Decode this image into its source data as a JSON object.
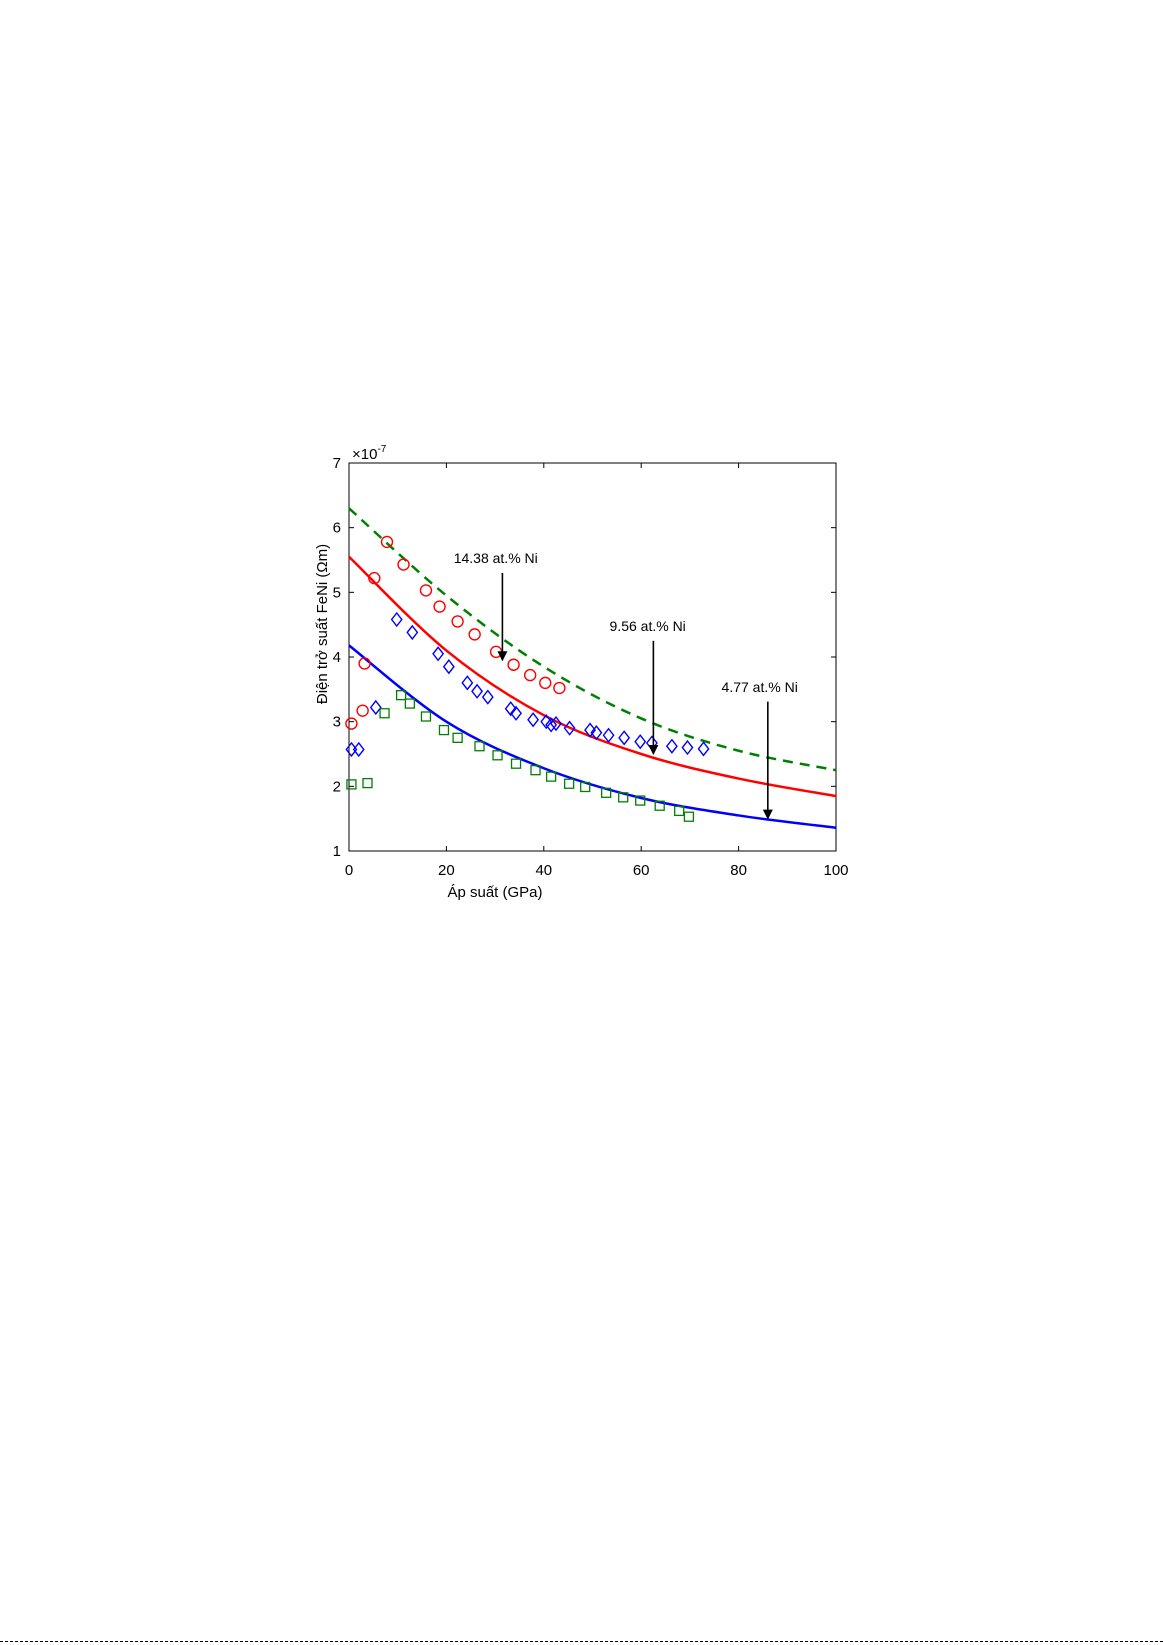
{
  "chart_data": {
    "type": "scatter",
    "title": "",
    "xlabel": "Áp suất (GPa)",
    "ylabel": "Điện trở suất FeNi (Ωm)",
    "y_multiplier": "×10",
    "y_multiplier_exp": "-7",
    "xlim": [
      0,
      100
    ],
    "ylim": [
      1,
      7
    ],
    "xticks": [
      0,
      20,
      40,
      60,
      80,
      100
    ],
    "yticks": [
      1,
      2,
      3,
      4,
      5,
      6,
      7
    ],
    "grid": false,
    "series": [
      {
        "marker": "circle",
        "color": "#ff0000",
        "points": [
          [
            0.5,
            2.97
          ],
          [
            2.8,
            3.17
          ],
          [
            3.2,
            3.9
          ],
          [
            5.2,
            5.22
          ],
          [
            7.8,
            5.78
          ],
          [
            11.2,
            5.43
          ],
          [
            15.8,
            5.03
          ],
          [
            18.6,
            4.78
          ],
          [
            22.3,
            4.55
          ],
          [
            25.8,
            4.35
          ],
          [
            30.2,
            4.08
          ],
          [
            33.8,
            3.88
          ],
          [
            37.2,
            3.72
          ],
          [
            40.3,
            3.6
          ],
          [
            43.2,
            3.52
          ]
        ]
      },
      {
        "marker": "diamond",
        "color": "#0000ff",
        "points": [
          [
            0.5,
            2.57
          ],
          [
            2.0,
            2.57
          ],
          [
            5.5,
            3.22
          ],
          [
            9.8,
            4.58
          ],
          [
            13.0,
            4.38
          ],
          [
            18.3,
            4.05
          ],
          [
            20.5,
            3.85
          ],
          [
            24.3,
            3.6
          ],
          [
            26.3,
            3.47
          ],
          [
            28.5,
            3.38
          ],
          [
            33.2,
            3.2
          ],
          [
            34.3,
            3.13
          ],
          [
            37.8,
            3.03
          ],
          [
            40.5,
            3.0
          ],
          [
            41.5,
            2.95
          ],
          [
            42.5,
            2.97
          ],
          [
            45.3,
            2.9
          ],
          [
            49.5,
            2.87
          ],
          [
            50.8,
            2.83
          ],
          [
            53.3,
            2.79
          ],
          [
            56.5,
            2.75
          ],
          [
            59.8,
            2.69
          ],
          [
            62.2,
            2.67
          ],
          [
            66.3,
            2.62
          ],
          [
            69.5,
            2.6
          ],
          [
            72.8,
            2.58
          ]
        ]
      },
      {
        "marker": "square",
        "color": "#008000",
        "points": [
          [
            0.5,
            2.03
          ],
          [
            3.8,
            2.05
          ],
          [
            7.3,
            3.13
          ],
          [
            10.7,
            3.41
          ],
          [
            12.5,
            3.28
          ],
          [
            15.8,
            3.08
          ],
          [
            19.5,
            2.87
          ],
          [
            22.3,
            2.75
          ],
          [
            26.8,
            2.62
          ],
          [
            30.5,
            2.48
          ],
          [
            34.3,
            2.35
          ],
          [
            38.3,
            2.25
          ],
          [
            41.5,
            2.15
          ],
          [
            45.2,
            2.04
          ],
          [
            48.5,
            1.99
          ],
          [
            52.8,
            1.9
          ],
          [
            56.3,
            1.83
          ],
          [
            59.8,
            1.78
          ],
          [
            63.8,
            1.7
          ],
          [
            67.8,
            1.62
          ],
          [
            69.8,
            1.53
          ]
        ]
      },
      {
        "line": "dashed",
        "color": "#008000",
        "points": [
          [
            0,
            6.3
          ],
          [
            20,
            4.95
          ],
          [
            40,
            3.85
          ],
          [
            60,
            3.05
          ],
          [
            80,
            2.55
          ],
          [
            100,
            2.25
          ]
        ]
      },
      {
        "line": "solid",
        "color": "#ff0000",
        "points": [
          [
            0,
            5.55
          ],
          [
            20,
            4.1
          ],
          [
            40,
            3.1
          ],
          [
            60,
            2.5
          ],
          [
            80,
            2.12
          ],
          [
            100,
            1.85
          ]
        ]
      },
      {
        "line": "solid",
        "color": "#0000ff",
        "points": [
          [
            0,
            4.18
          ],
          [
            20,
            3.0
          ],
          [
            40,
            2.28
          ],
          [
            60,
            1.82
          ],
          [
            80,
            1.55
          ],
          [
            100,
            1.36
          ]
        ]
      }
    ],
    "annotations": [
      {
        "text": "14.38 at.% Ni",
        "label_at": [
          21.5,
          5.45
        ],
        "arrow_from": [
          31.5,
          5.3
        ],
        "arrow_to": [
          31.5,
          3.95
        ]
      },
      {
        "text": "9.56 at.% Ni",
        "label_at": [
          53.5,
          4.4
        ],
        "arrow_from": [
          62.5,
          4.25
        ],
        "arrow_to": [
          62.5,
          2.5
        ]
      },
      {
        "text": "4.77 at.% Ni",
        "label_at": [
          76.5,
          3.46
        ],
        "arrow_from": [
          86,
          3.31
        ],
        "arrow_to": [
          86,
          1.5
        ]
      }
    ]
  }
}
